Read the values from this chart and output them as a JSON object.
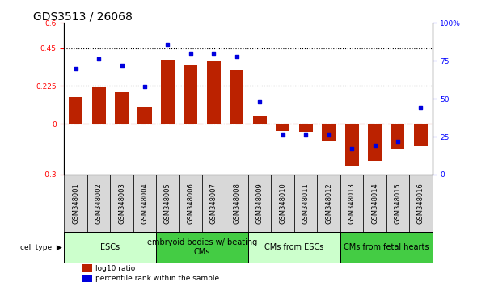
{
  "title": "GDS3513 / 26068",
  "samples": [
    "GSM348001",
    "GSM348002",
    "GSM348003",
    "GSM348004",
    "GSM348005",
    "GSM348006",
    "GSM348007",
    "GSM348008",
    "GSM348009",
    "GSM348010",
    "GSM348011",
    "GSM348012",
    "GSM348013",
    "GSM348014",
    "GSM348015",
    "GSM348016"
  ],
  "log10_ratio": [
    0.16,
    0.22,
    0.19,
    0.1,
    0.38,
    0.35,
    0.37,
    0.32,
    0.05,
    -0.04,
    -0.05,
    -0.1,
    -0.25,
    -0.22,
    -0.15,
    -0.13
  ],
  "pct_rank": [
    70,
    76,
    72,
    58,
    86,
    80,
    80,
    78,
    48,
    26,
    26,
    26,
    17,
    19,
    22,
    44
  ],
  "ylim_left": [
    -0.3,
    0.6
  ],
  "ylim_right": [
    0,
    100
  ],
  "yticks_left": [
    -0.3,
    0.0,
    0.225,
    0.45,
    0.6
  ],
  "yticks_left_labels": [
    "-0.3",
    "0",
    "0.225",
    "0.45",
    "0.6"
  ],
  "yticks_right": [
    0,
    25,
    50,
    75,
    100
  ],
  "yticks_right_labels": [
    "0",
    "25",
    "50",
    "75",
    "100%"
  ],
  "hlines": [
    0.225,
    0.45
  ],
  "bar_color": "#bb2200",
  "dot_color": "#0000dd",
  "zero_line_color": "#bb2200",
  "groups": [
    {
      "label": "ESCs",
      "start": 0,
      "end": 4,
      "color": "#ccffcc"
    },
    {
      "label": "embryoid bodies w/ beating\nCMs",
      "start": 4,
      "end": 8,
      "color": "#44cc44"
    },
    {
      "label": "CMs from ESCs",
      "start": 8,
      "end": 12,
      "color": "#ccffcc"
    },
    {
      "label": "CMs from fetal hearts",
      "start": 12,
      "end": 16,
      "color": "#44cc44"
    }
  ],
  "legend_bar": "log10 ratio",
  "legend_dot": "percentile rank within the sample",
  "title_fontsize": 10,
  "tick_fontsize": 6.5,
  "label_fontsize": 8,
  "group_label_fontsize": 8,
  "sample_fontsize": 6
}
